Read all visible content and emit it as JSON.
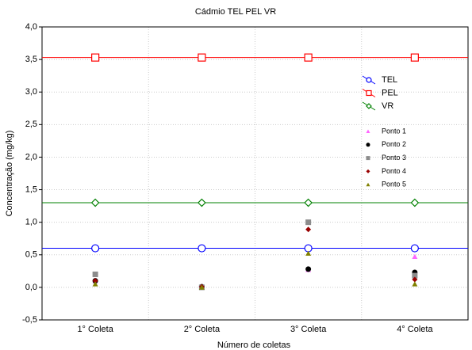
{
  "chart_data": {
    "type": "line",
    "title": "Cádmio TEL PEL VR",
    "x_label": "Número de coletas",
    "y_label": "Concentração (mg/kg)",
    "categories": [
      "1° Coleta",
      "2° Coleta",
      "3° Coleta",
      "4° Coleta"
    ],
    "ylim": [
      -0.5,
      4.0
    ],
    "yticks": [
      {
        "value": -0.5,
        "label": "-0,5"
      },
      {
        "value": 0,
        "label": "0,0"
      },
      {
        "value": 0.5,
        "label": "0,5"
      },
      {
        "value": 1.0,
        "label": "1,0"
      },
      {
        "value": 1.5,
        "label": "1,5"
      },
      {
        "value": 2.0,
        "label": "2,0"
      },
      {
        "value": 2.5,
        "label": "2,5"
      },
      {
        "value": 3.0,
        "label": "3,0"
      },
      {
        "value": 3.5,
        "label": "3,5"
      },
      {
        "value": 4.0,
        "label": "4,0"
      }
    ],
    "grid": true,
    "series": [
      {
        "name": "TEL",
        "color": "#0000ff",
        "mode": "line",
        "marker": "circle",
        "values": [
          0.6,
          0.6,
          0.6,
          0.6
        ]
      },
      {
        "name": "PEL",
        "color": "#ff0000",
        "mode": "line",
        "marker": "square",
        "values": [
          3.53,
          3.53,
          3.53,
          3.53
        ]
      },
      {
        "name": "VR",
        "color": "#008000",
        "mode": "line",
        "marker": "diamond",
        "values": [
          1.3,
          1.3,
          1.3,
          1.3
        ]
      },
      {
        "name": "Ponto 1",
        "color": "#ff66ff",
        "mode": "points",
        "marker": "triangle",
        "values": [
          0.1,
          0.0,
          0.27,
          0.47
        ]
      },
      {
        "name": "Ponto 2",
        "color": "#000000",
        "mode": "points",
        "marker": "circle",
        "values": [
          0.1,
          0.01,
          0.28,
          0.23
        ]
      },
      {
        "name": "Ponto 3",
        "color": "#8c8c8c",
        "mode": "points",
        "marker": "square",
        "values": [
          0.2,
          0.0,
          1.0,
          0.18
        ]
      },
      {
        "name": "Ponto 4",
        "color": "#990000",
        "mode": "points",
        "marker": "diamond",
        "values": [
          0.1,
          0.01,
          0.89,
          0.12
        ]
      },
      {
        "name": "Ponto 5",
        "color": "#808000",
        "mode": "points",
        "marker": "triangle",
        "values": [
          0.05,
          0.0,
          0.52,
          0.05
        ]
      }
    ]
  }
}
